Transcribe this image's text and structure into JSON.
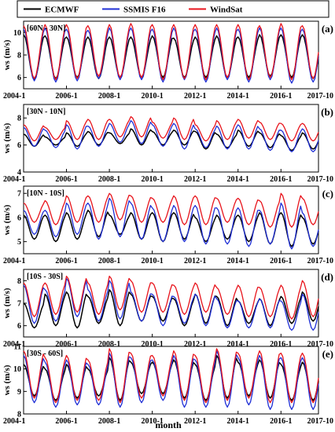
{
  "chart_data": {
    "type": "line",
    "legend": {
      "placement": "top",
      "entries": [
        {
          "name": "ECMWF",
          "color": "#000000"
        },
        {
          "name": "SSMIS F16",
          "color": "#1f2fd6"
        },
        {
          "name": "WindSat",
          "color": "#e8141c"
        }
      ]
    },
    "xlabel": "month",
    "x_tick_labels": [
      "2004-1",
      "2006-1",
      "2008-1",
      "2010-1",
      "2012-1",
      "2014-1",
      "2016-1",
      "2017-10"
    ],
    "grid": false,
    "panels": [
      {
        "panel_label": "(a)",
        "region": "[60N - 30N]",
        "ylabel": "ws (m/s)",
        "ylim": [
          5,
          11
        ],
        "yticks": [
          "6",
          "8",
          "10"
        ],
        "series": [
          {
            "name": "ECMWF",
            "peak": [
              9.8,
              9.7,
              9.6,
              9.6,
              9.6,
              9.6,
              9.7,
              9.5,
              9.6,
              9.7,
              9.6,
              9.8,
              9.8,
              9.8,
              9.7
            ],
            "trough": [
              5.8,
              5.9,
              6.0,
              5.9,
              6.0,
              6.0,
              6.0,
              6.0,
              6.0,
              6.0,
              6.0,
              6.1,
              6.0,
              5.9
            ]
          },
          {
            "name": "SSMIS F16",
            "peak": [
              10.3,
              10.4,
              10.3,
              10.2,
              10.4,
              10.4,
              10.3,
              10.4,
              10.3,
              10.4,
              10.3,
              10.4,
              10.4,
              10.3,
              10.2
            ],
            "trough": [
              5.7,
              5.6,
              5.7,
              5.9,
              5.8,
              5.8,
              5.6,
              5.8,
              5.6,
              5.8,
              5.6,
              5.8,
              5.5,
              5.6
            ]
          },
          {
            "name": "WindSat",
            "peak": [
              10.6,
              10.7,
              10.7,
              10.6,
              10.7,
              10.8,
              10.7,
              10.7,
              10.7,
              10.7,
              10.7,
              10.6,
              10.8,
              10.6,
              10.6
            ],
            "trough": [
              5.9,
              5.8,
              5.9,
              6.1,
              6.0,
              6.0,
              5.8,
              5.9,
              5.8,
              6.0,
              5.8,
              6.0,
              5.8,
              5.9
            ]
          }
        ]
      },
      {
        "panel_label": "(b)",
        "region": "[30N - 10N]",
        "ylabel": "ws (m/s)",
        "ylim": [
          4,
          9
        ],
        "yticks": [
          "4",
          "6",
          "8"
        ],
        "series": [
          {
            "name": "ECMWF",
            "peak": [
              6.8,
              6.6,
              6.9,
              7.0,
              6.9,
              7.2,
              7.0,
              7.1,
              7.0,
              6.8,
              7.1,
              6.9,
              6.7,
              6.9,
              6.4
            ],
            "trough": [
              5.9,
              6.0,
              5.9,
              6.0,
              6.1,
              6.0,
              6.0,
              6.0,
              5.7,
              5.8,
              5.9,
              5.8,
              5.6,
              5.7
            ]
          },
          {
            "name": "SSMIS F16",
            "peak": [
              7.3,
              7.1,
              7.5,
              7.4,
              7.6,
              7.8,
              7.5,
              7.6,
              7.2,
              7.4,
              7.5,
              7.2,
              7.1,
              7.2,
              6.6
            ],
            "trough": [
              5.9,
              5.8,
              5.7,
              5.9,
              6.2,
              6.1,
              5.9,
              5.7,
              5.8,
              5.7,
              5.7,
              5.6,
              5.5,
              5.5
            ]
          },
          {
            "name": "WindSat",
            "peak": [
              7.5,
              7.3,
              7.8,
              7.9,
              7.9,
              8.1,
              7.7,
              8.0,
              7.5,
              7.8,
              7.9,
              7.7,
              7.6,
              7.6,
              7.2
            ],
            "trough": [
              6.3,
              6.4,
              6.4,
              6.4,
              6.6,
              6.6,
              6.5,
              6.4,
              6.3,
              6.4,
              6.5,
              6.4,
              6.3,
              6.3
            ]
          }
        ]
      },
      {
        "panel_label": "(c)",
        "region": "[10N - 10S]",
        "ylabel": "ws (m/s)",
        "ylim": [
          4.5,
          7.3
        ],
        "yticks": [
          "5",
          "6",
          "7"
        ],
        "series": [
          {
            "name": "ECMWF",
            "peak": [
              6.1,
              6.1,
              6.2,
              6.3,
              6.1,
              6.2,
              6.2,
              6.2,
              6.0,
              6.1,
              6.1,
              6.2,
              6.2,
              6.0,
              6.1
            ],
            "trough": [
              5.1,
              5.0,
              5.1,
              5.2,
              5.3,
              5.1,
              5.0,
              5.1,
              5.0,
              5.1,
              5.0,
              4.9,
              4.8,
              4.9
            ]
          },
          {
            "name": "SSMIS F16",
            "peak": [
              6.3,
              6.3,
              6.6,
              6.6,
              6.8,
              6.6,
              6.4,
              6.5,
              6.5,
              6.4,
              6.4,
              6.3,
              6.6,
              6.2,
              6.2
            ],
            "trough": [
              5.3,
              5.2,
              5.3,
              5.1,
              5.2,
              5.1,
              5.0,
              5.0,
              4.9,
              4.9,
              4.8,
              4.9,
              4.7,
              4.8
            ]
          },
          {
            "name": "WindSat",
            "peak": [
              6.6,
              6.7,
              6.9,
              6.9,
              7.0,
              6.9,
              6.8,
              6.9,
              6.9,
              6.8,
              6.8,
              6.7,
              7.0,
              6.8,
              6.8
            ],
            "trough": [
              5.8,
              5.7,
              5.8,
              5.8,
              5.9,
              5.8,
              5.8,
              5.7,
              5.7,
              5.8,
              5.7,
              5.6,
              5.6,
              5.7
            ]
          }
        ]
      },
      {
        "panel_label": "(d)",
        "region": "[10S - 30S]",
        "ylabel": "ws (m/s)",
        "ylim": [
          5.5,
          8.5
        ],
        "yticks": [
          "6",
          "7",
          "8"
        ],
        "series": [
          {
            "name": "ECMWF",
            "peak": [
              7.0,
              7.4,
              7.5,
              7.3,
              7.6,
              7.4,
              7.3,
              7.2,
              7.4,
              7.3,
              7.1,
              7.2,
              7.3,
              7.5,
              7.2
            ],
            "trough": [
              5.9,
              6.0,
              5.9,
              6.1,
              6.0,
              6.2,
              6.2,
              6.0,
              6.1,
              6.0,
              6.1,
              6.0,
              6.1,
              6.2
            ]
          },
          {
            "name": "SSMIS F16",
            "peak": [
              7.8,
              7.6,
              8.1,
              7.6,
              8.0,
              7.5,
              7.4,
              7.3,
              7.4,
              7.2,
              7.1,
              7.2,
              7.1,
              7.4,
              7.0
            ],
            "trough": [
              6.1,
              6.2,
              6.4,
              6.2,
              6.3,
              6.2,
              6.0,
              6.1,
              6.0,
              5.9,
              5.9,
              5.9,
              5.8,
              5.8
            ]
          },
          {
            "name": "WindSat",
            "peak": [
              7.9,
              7.9,
              8.2,
              7.9,
              8.2,
              8.0,
              7.9,
              7.8,
              7.9,
              7.7,
              7.8,
              7.7,
              7.8,
              8.0,
              7.7
            ],
            "trough": [
              6.4,
              6.5,
              6.6,
              6.5,
              6.7,
              6.6,
              6.6,
              6.5,
              6.6,
              6.5,
              6.4,
              6.4,
              6.3,
              6.4
            ]
          }
        ]
      },
      {
        "panel_label": "(e)",
        "region": "[30S - 60S]",
        "ylabel": "ws (m/s)",
        "ylim": [
          8,
          11
        ],
        "yticks": [
          "8",
          "9",
          "10",
          "11"
        ],
        "series": [
          {
            "name": "ECMWF",
            "peak": [
              10.2,
              10.0,
              10.2,
              10.0,
              10.5,
              10.3,
              10.3,
              10.4,
              10.2,
              10.6,
              10.3,
              10.4,
              10.2,
              10.3,
              10.0
            ],
            "trough": [
              8.8,
              8.6,
              8.7,
              8.8,
              8.6,
              8.9,
              8.9,
              8.7,
              8.6,
              8.7,
              8.8,
              8.7,
              8.6,
              8.6
            ]
          },
          {
            "name": "SSMIS F16",
            "peak": [
              10.6,
              10.3,
              10.4,
              10.2,
              10.7,
              10.5,
              10.4,
              10.6,
              10.4,
              10.8,
              10.5,
              10.6,
              10.5,
              10.5,
              10.3
            ],
            "trough": [
              8.5,
              8.3,
              8.4,
              8.4,
              8.3,
              8.5,
              8.6,
              8.3,
              8.3,
              8.3,
              8.4,
              8.2,
              8.2,
              8.2
            ]
          },
          {
            "name": "WindSat",
            "peak": [
              10.8,
              10.5,
              10.6,
              10.4,
              10.9,
              10.7,
              10.6,
              10.8,
              10.6,
              10.9,
              10.7,
              10.8,
              10.7,
              10.7,
              10.5
            ],
            "trough": [
              8.7,
              8.5,
              8.6,
              8.6,
              8.5,
              8.7,
              8.8,
              8.6,
              8.5,
              8.6,
              8.7,
              8.5,
              8.5,
              8.5
            ]
          }
        ]
      }
    ]
  }
}
